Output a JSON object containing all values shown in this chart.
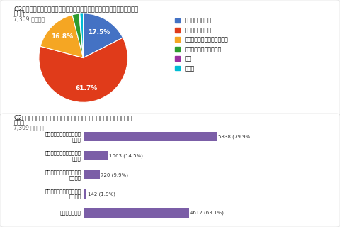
{
  "pie": {
    "labels": [
      "帰省先の実家など",
      "通学範囲内の実家",
      "一人暮らし（アパートなど）",
      "学生寮や運動部などの寮",
      "国外",
      "その他"
    ],
    "values": [
      17.5,
      61.7,
      16.8,
      2.5,
      0.3,
      1.2
    ],
    "colors": [
      "#4472c4",
      "#e03b1a",
      "#f5a623",
      "#2e9c2e",
      "#9b2fa0",
      "#00bcd4"
    ],
    "startangle": 90
  },
  "bar": {
    "title1": "Q2　オンライン授業を受講する際に使用している機器を、すべて選んでく",
    "title2": "ださい",
    "subtitle": "7,309 件の回答",
    "categories": [
      "自分が自由に使用できるパ\nソコン",
      "家族など他人と共有するパ\nソコン",
      "自分が自由に使用できるタ\nブレット",
      "家族など他人と共有するタ\nブレット",
      "スマートフォン"
    ],
    "values": [
      5838,
      1063,
      720,
      142,
      4612
    ],
    "labels": [
      "5838 (79.9%",
      "1063 (14.5%)",
      "720 (9.9%)",
      "142 (1.9%)",
      "4612 (63.1%)"
    ],
    "color": "#7b5ea7",
    "max_value": 7309
  },
  "bg_color": "#f5f5f5",
  "card_color": "#ffffff"
}
